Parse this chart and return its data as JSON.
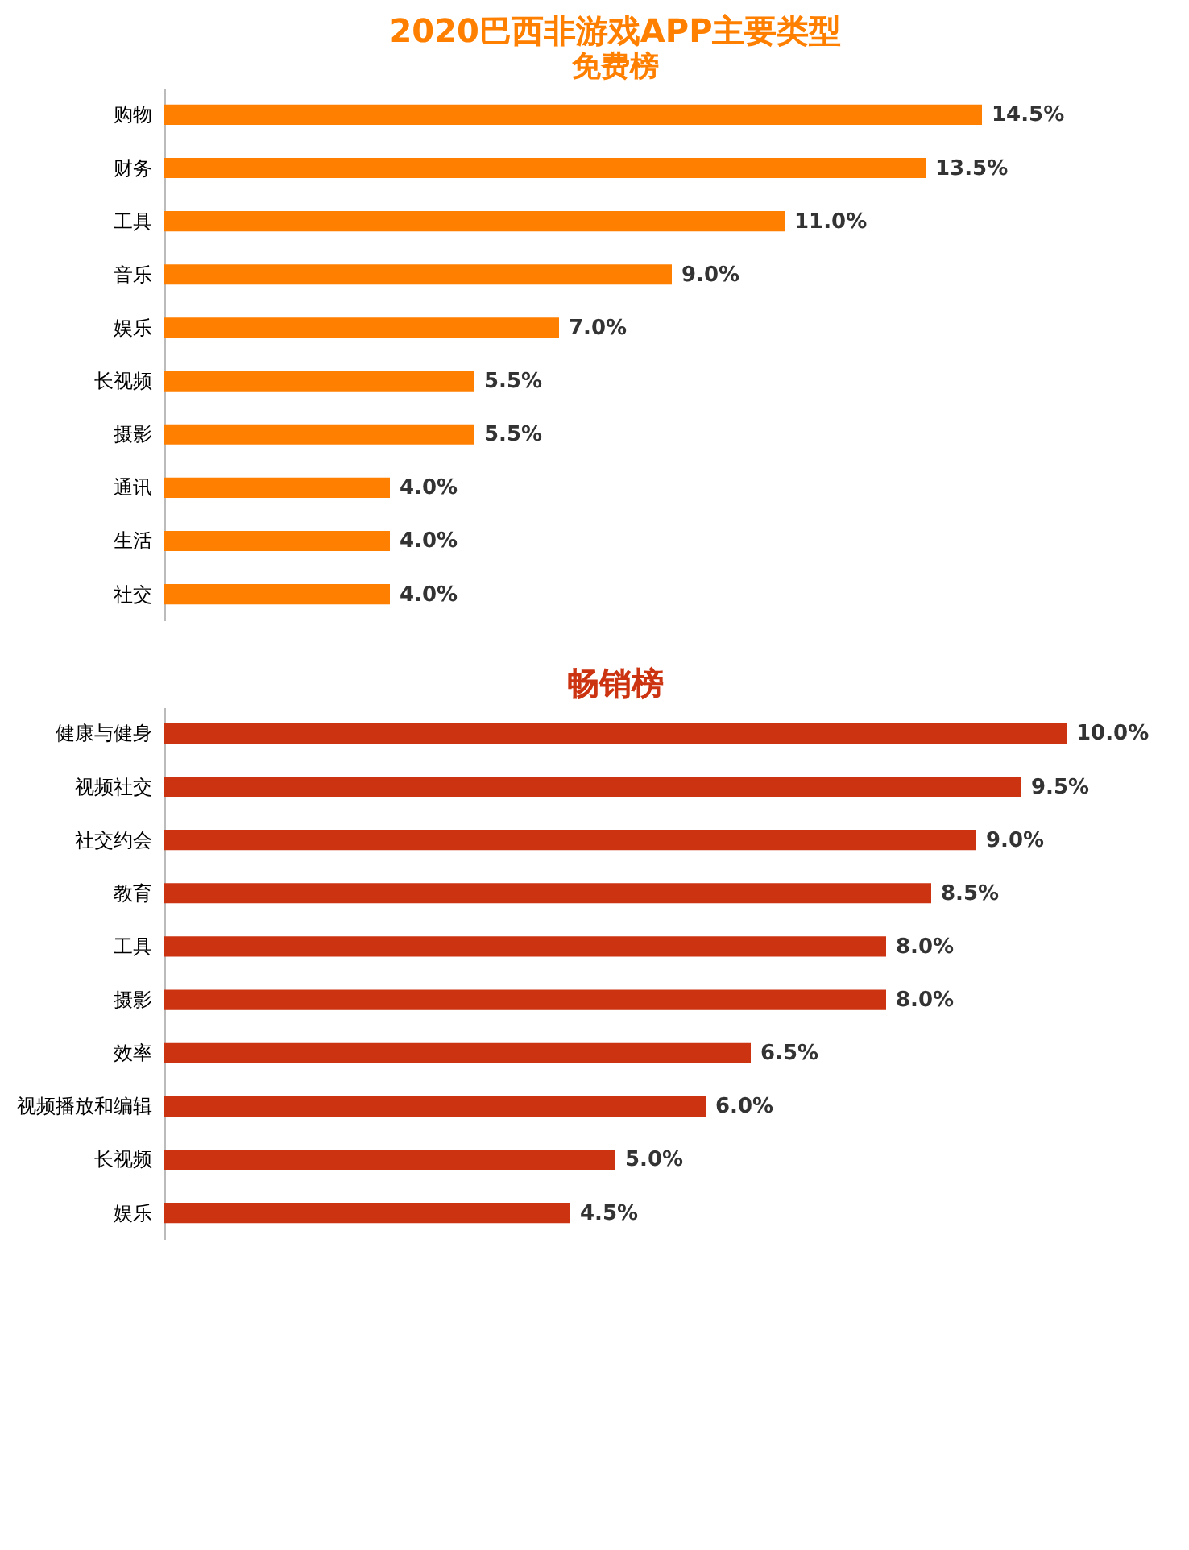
{
  "chart_data": [
    {
      "type": "bar",
      "orientation": "horizontal",
      "title": "2020巴西非游戏APP主要类型",
      "subtitle": "免费榜",
      "categories": [
        "购物",
        "财务",
        "工具",
        "音乐",
        "娱乐",
        "长视频",
        "摄影",
        "通讯",
        "生活",
        "社交"
      ],
      "series": [
        {
          "color": "#ff7f00",
          "values": [
            14.5,
            13.5,
            11.0,
            9.0,
            7.0,
            5.5,
            5.5,
            4.0,
            4.0,
            4.0
          ],
          "value_labels": [
            "14.5%",
            "13.5%",
            "11.0%",
            "9.0%",
            "7.0%",
            "5.5%",
            "5.5%",
            "4.0%",
            "4.0%",
            "4.0%"
          ]
        }
      ],
      "grid": false
    },
    {
      "type": "bar",
      "orientation": "horizontal",
      "title": "畅销榜",
      "categories": [
        "健康与健身",
        "视频社交",
        "社交约会",
        "教育",
        "工具",
        "摄影",
        "效率",
        "视频播放和编辑",
        "长视频",
        "娱乐"
      ],
      "series": [
        {
          "color": "#cc3311",
          "values": [
            10.0,
            9.5,
            9.0,
            8.5,
            8.0,
            8.0,
            6.5,
            6.0,
            5.0,
            4.5
          ],
          "value_labels": [
            "10.0%",
            "9.5%",
            "9.0%",
            "8.5%",
            "8.0%",
            "8.0%",
            "6.5%",
            "6.0%",
            "5.0%",
            "4.5%"
          ]
        }
      ],
      "grid": false
    }
  ]
}
